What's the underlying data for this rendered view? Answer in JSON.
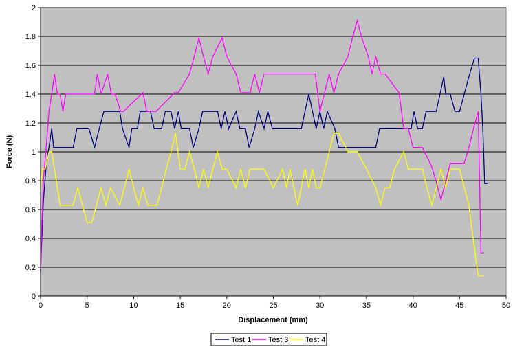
{
  "chart_data": {
    "type": "line",
    "title": "",
    "xlabel": "Displacement (mm)",
    "ylabel": "Force (N)",
    "xlim": [
      0,
      50
    ],
    "ylim": [
      0,
      2
    ],
    "xticks": [
      "0",
      "5",
      "10",
      "15",
      "20",
      "25",
      "30",
      "35",
      "40",
      "45",
      "50"
    ],
    "yticks": [
      "0",
      "0.2",
      "0.4",
      "0.6",
      "0.8",
      "1",
      "1.2",
      "1.4",
      "1.6",
      "1.8",
      "2"
    ],
    "grid": "horizontal",
    "plot_background": "#c0c0c0",
    "legend_position": "bottom",
    "series": [
      {
        "name": "Test 1",
        "color": "#000080",
        "x": [
          0,
          0.1,
          0.3,
          0.6,
          0.9,
          1.2,
          1.4,
          1.6,
          3.5,
          3.9,
          5.2,
          5.8,
          6.3,
          6.8,
          8.5,
          8.8,
          9.5,
          9.8,
          10.4,
          10.7,
          11.8,
          12.2,
          13.0,
          13.4,
          14.0,
          14.4,
          14.8,
          15.1,
          16.0,
          16.4,
          17.0,
          17.4,
          19.0,
          19.4,
          19.8,
          20.2,
          21.0,
          21.4,
          22.0,
          22.4,
          23.0,
          23.4,
          24.0,
          24.4,
          24.9,
          25.3,
          28.0,
          28.4,
          28.8,
          29.2,
          29.6,
          30.0,
          30.4,
          30.8,
          31.6,
          32.0,
          32.4,
          32.8,
          36.0,
          36.4,
          37.0,
          39.8,
          40.1,
          40.5,
          41.0,
          41.4,
          42.5,
          42.9,
          43.3,
          43.5,
          44.0,
          44.5,
          45.0,
          45.5,
          46.0,
          46.6,
          47.0,
          47.3,
          47.5,
          47.7,
          48.0
        ],
        "y": [
          0.17,
          0.35,
          0.66,
          0.9,
          1.03,
          1.16,
          1.03,
          1.03,
          1.03,
          1.16,
          1.16,
          1.03,
          1.16,
          1.28,
          1.28,
          1.16,
          1.03,
          1.16,
          1.16,
          1.28,
          1.28,
          1.16,
          1.16,
          1.28,
          1.28,
          1.16,
          1.28,
          1.16,
          1.16,
          1.03,
          1.16,
          1.28,
          1.28,
          1.16,
          1.28,
          1.16,
          1.28,
          1.16,
          1.16,
          1.03,
          1.16,
          1.28,
          1.16,
          1.28,
          1.16,
          1.16,
          1.16,
          1.28,
          1.4,
          1.28,
          1.16,
          1.28,
          1.16,
          1.28,
          1.16,
          1.03,
          1.03,
          1.03,
          1.03,
          1.16,
          1.16,
          1.16,
          1.28,
          1.16,
          1.16,
          1.28,
          1.28,
          1.4,
          1.52,
          1.4,
          1.4,
          1.28,
          1.28,
          1.4,
          1.52,
          1.65,
          1.65,
          1.4,
          1.16,
          0.78,
          0.78
        ]
      },
      {
        "name": "Test 3",
        "color": "#ff00ff",
        "x": [
          0,
          0.1,
          0.3,
          0.6,
          0.9,
          1.2,
          1.5,
          1.8,
          2.1,
          2.4,
          2.7,
          5.8,
          6.1,
          6.5,
          7.2,
          7.6,
          8.0,
          8.6,
          8.9,
          11.0,
          11.4,
          12.0,
          12.4,
          14.4,
          14.8,
          16.0,
          16.5,
          17.0,
          17.5,
          18.0,
          18.5,
          19.5,
          20.0,
          21.0,
          21.5,
          22.5,
          23.0,
          23.5,
          24.0,
          25.0,
          26.0,
          26.4,
          27.0,
          29.5,
          30.0,
          30.5,
          31.0,
          31.5,
          32.0,
          33.0,
          33.5,
          34.0,
          34.5,
          35.2,
          35.6,
          36.0,
          36.5,
          37.0,
          38.5,
          39.0,
          39.5,
          40.0,
          41.0,
          42.0,
          42.5,
          43.0,
          43.5,
          44.0,
          45.5,
          46.0,
          46.5,
          47.0,
          47.3,
          47.6
        ],
        "y": [
          0.17,
          0.45,
          0.8,
          1.03,
          1.28,
          1.4,
          1.54,
          1.4,
          1.4,
          1.28,
          1.4,
          1.4,
          1.54,
          1.4,
          1.54,
          1.4,
          1.4,
          1.28,
          1.28,
          1.41,
          1.28,
          1.28,
          1.28,
          1.41,
          1.41,
          1.54,
          1.66,
          1.79,
          1.66,
          1.54,
          1.66,
          1.79,
          1.66,
          1.54,
          1.41,
          1.41,
          1.54,
          1.41,
          1.54,
          1.54,
          1.54,
          1.54,
          1.54,
          1.54,
          1.28,
          1.41,
          1.54,
          1.41,
          1.54,
          1.66,
          1.79,
          1.91,
          1.79,
          1.66,
          1.54,
          1.66,
          1.54,
          1.54,
          1.41,
          1.16,
          1.16,
          1.03,
          1.03,
          0.9,
          0.79,
          0.67,
          0.79,
          0.92,
          0.92,
          1.03,
          1.16,
          1.28,
          0.3,
          0.3
        ]
      },
      {
        "name": "Test 4",
        "color": "#ffff00",
        "x": [
          0,
          0.2,
          0.5,
          0.9,
          1.2,
          1.5,
          1.8,
          2.1,
          2.4,
          3.0,
          3.5,
          4.0,
          4.5,
          5.0,
          5.5,
          6.0,
          6.5,
          7.0,
          7.5,
          8.5,
          9.0,
          9.5,
          10.0,
          10.5,
          11.0,
          11.5,
          12.0,
          12.5,
          13.0,
          13.5,
          14.0,
          14.5,
          15.0,
          15.5,
          16.0,
          16.5,
          17.0,
          17.5,
          18.0,
          18.5,
          19.0,
          19.5,
          20.0,
          21.0,
          21.5,
          22.0,
          22.5,
          23.0,
          24.0,
          25.0,
          26.0,
          26.4,
          26.8,
          27.2,
          27.6,
          28.0,
          28.4,
          28.8,
          29.2,
          29.6,
          30.0,
          31.0,
          31.5,
          32.0,
          33.0,
          33.5,
          34.0,
          35.0,
          36.0,
          36.5,
          37.0,
          37.5,
          38.0,
          39.0,
          39.5,
          40.0,
          41.0,
          41.5,
          42.0,
          42.5,
          43.0,
          43.5,
          44.0,
          45.0,
          45.5,
          46.0,
          46.5,
          47.0,
          47.3,
          47.6
        ],
        "y": [
          0.75,
          0.88,
          0.88,
          1.0,
          1.0,
          0.88,
          0.75,
          0.63,
          0.63,
          0.63,
          0.63,
          0.75,
          0.63,
          0.51,
          0.51,
          0.63,
          0.75,
          0.63,
          0.75,
          0.63,
          0.75,
          0.88,
          0.75,
          0.63,
          0.75,
          0.63,
          0.63,
          0.63,
          0.75,
          0.88,
          1.0,
          1.13,
          0.88,
          0.88,
          1.0,
          0.88,
          0.75,
          0.88,
          0.75,
          0.88,
          1.0,
          0.88,
          0.88,
          0.75,
          0.88,
          0.75,
          0.88,
          0.88,
          0.88,
          0.75,
          0.88,
          0.75,
          0.88,
          0.75,
          0.63,
          0.75,
          0.88,
          0.75,
          0.88,
          0.75,
          0.75,
          1.0,
          1.13,
          1.13,
          1.0,
          1.0,
          1.0,
          0.88,
          0.75,
          0.63,
          0.75,
          0.75,
          0.88,
          1.0,
          0.88,
          0.88,
          0.88,
          0.75,
          0.63,
          0.75,
          0.88,
          0.75,
          0.88,
          0.88,
          0.75,
          0.63,
          0.38,
          0.14,
          0.14,
          0.14
        ]
      }
    ]
  }
}
